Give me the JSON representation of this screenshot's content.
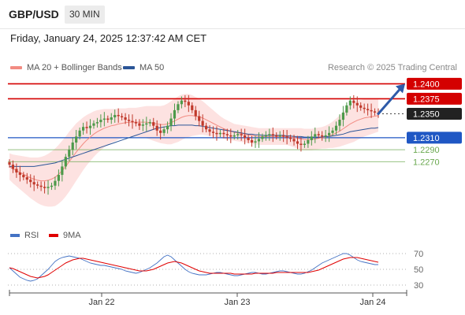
{
  "header": {
    "symbol": "GBP/USD",
    "timeframe": "30 MIN"
  },
  "datetime": "Friday, January 24, 2025 12:37:42 AM CET",
  "legend": {
    "bollinger": {
      "label": "MA 20 + Bollinger Bands",
      "color": "#f28b82"
    },
    "ma50": {
      "label": "MA 50",
      "color": "#2b5597"
    }
  },
  "credit": "Research © 2025 Trading Central",
  "rsi_legend": {
    "rsi": {
      "label": "RSI",
      "color": "#4472c4"
    },
    "ma9": {
      "label": "9MA",
      "color": "#e00000"
    }
  },
  "chart_data": {
    "type": "candlestick",
    "symbol": "GBP/USD",
    "timeframe": "30 MIN",
    "x_ticks": [
      "Jan 22",
      "Jan 23",
      "Jan 24"
    ],
    "price_ylim": [
      1.2185,
      1.2415
    ],
    "levels": [
      {
        "value": 1.24,
        "label": "1.2400",
        "kind": "resistance",
        "color": "#d40000"
      },
      {
        "value": 1.2375,
        "label": "1.2375",
        "kind": "resistance",
        "color": "#d40000"
      },
      {
        "value": 1.235,
        "label": "1.2350",
        "kind": "last",
        "color": "#222222"
      },
      {
        "value": 1.231,
        "label": "1.2310",
        "kind": "pivot",
        "color": "#1f57c4"
      },
      {
        "value": 1.229,
        "label": "1.2290",
        "kind": "support",
        "color": "#6aa84f"
      },
      {
        "value": 1.227,
        "label": "1.2270",
        "kind": "support",
        "color": "#6aa84f"
      }
    ],
    "close": [
      1.2265,
      1.2258,
      1.2252,
      1.2248,
      1.2244,
      1.224,
      1.2236,
      1.2232,
      1.223,
      1.2228,
      1.2226,
      1.2228,
      1.223,
      1.2238,
      1.2248,
      1.2262,
      1.2278,
      1.229,
      1.2302,
      1.2312,
      1.2322,
      1.2328,
      1.2326,
      1.233,
      1.2334,
      1.2336,
      1.234,
      1.2342,
      1.234,
      1.2344,
      1.2348,
      1.2346,
      1.2344,
      1.234,
      1.2338,
      1.2336,
      1.2334,
      1.233,
      1.2332,
      1.2334,
      1.2336,
      1.233,
      1.2322,
      1.2318,
      1.2324,
      1.233,
      1.2342,
      1.2356,
      1.2366,
      1.2372,
      1.237,
      1.2364,
      1.2356,
      1.2346,
      1.2338,
      1.233,
      1.2324,
      1.232,
      1.2318,
      1.2316,
      1.2318,
      1.2316,
      1.2314,
      1.2312,
      1.2314,
      1.2316,
      1.2314,
      1.231,
      1.2306,
      1.2302,
      1.2304,
      1.2308,
      1.2312,
      1.2314,
      1.2316,
      1.2314,
      1.2312,
      1.2314,
      1.2312,
      1.231,
      1.2308,
      1.2304,
      1.23,
      1.2298,
      1.23,
      1.2306,
      1.2312,
      1.2316,
      1.2314,
      1.2312,
      1.2314,
      1.2318,
      1.2322,
      1.233,
      1.234,
      1.2352,
      1.2364,
      1.2372,
      1.2368,
      1.2364,
      1.236,
      1.2358,
      1.2356,
      1.2354,
      1.2352,
      1.235
    ],
    "ma20": [
      1.2262,
      1.2258,
      1.2255,
      1.2252,
      1.2249,
      1.2246,
      1.2243,
      1.2241,
      1.2239,
      1.2238,
      1.2238,
      1.2239,
      1.2241,
      1.2244,
      1.2249,
      1.2255,
      1.2262,
      1.227,
      1.2278,
      1.2286,
      1.2293,
      1.23,
      1.2306,
      1.2311,
      1.2316,
      1.232,
      1.2323,
      1.2326,
      1.2328,
      1.233,
      1.2331,
      1.2333,
      1.2334,
      1.2335,
      1.2336,
      1.2336,
      1.2336,
      1.2336,
      1.2336,
      1.2336,
      1.2335,
      1.2334,
      1.2333,
      1.2332,
      1.2332,
      1.2333,
      1.2335,
      1.2338,
      1.2341,
      1.2344,
      1.2346,
      1.2347,
      1.2347,
      1.2346,
      1.2345,
      1.2343,
      1.234,
      1.2337,
      1.2334,
      1.2331,
      1.2328,
      1.2325,
      1.2323,
      1.2321,
      1.2319,
      1.2318,
      1.2317,
      1.2316,
      1.2315,
      1.2314,
      1.2313,
      1.2312,
      1.2312,
      1.2312,
      1.2312,
      1.2312,
      1.2312,
      1.2312,
      1.2312,
      1.2312,
      1.2311,
      1.231,
      1.2309,
      1.2308,
      1.2307,
      1.2307,
      1.2307,
      1.2308,
      1.2309,
      1.231,
      1.2311,
      1.2313,
      1.2315,
      1.2318,
      1.2321,
      1.2325,
      1.2329,
      1.2333,
      1.2336,
      1.2339,
      1.2341,
      1.2343,
      1.2344,
      1.2345,
      1.2346,
      1.2347
    ],
    "band_width": [
      0.0022,
      0.0024,
      0.0026,
      0.0028,
      0.003,
      0.0032,
      0.0034,
      0.0036,
      0.0038,
      0.004,
      0.0042,
      0.0044,
      0.0046,
      0.0048,
      0.0049,
      0.005,
      0.005,
      0.005,
      0.0049,
      0.0048,
      0.0046,
      0.0044,
      0.0042,
      0.004,
      0.0038,
      0.0036,
      0.0034,
      0.0032,
      0.003,
      0.0028,
      0.0027,
      0.0026,
      0.0025,
      0.0024,
      0.0024,
      0.0024,
      0.0024,
      0.0025,
      0.0026,
      0.0027,
      0.0028,
      0.0029,
      0.003,
      0.0031,
      0.0032,
      0.0034,
      0.0036,
      0.0037,
      0.0038,
      0.0038,
      0.0037,
      0.0036,
      0.0034,
      0.0032,
      0.003,
      0.0028,
      0.0026,
      0.0024,
      0.0022,
      0.002,
      0.0018,
      0.0017,
      0.0016,
      0.0015,
      0.0014,
      0.0014,
      0.0014,
      0.0014,
      0.0014,
      0.0014,
      0.0014,
      0.0014,
      0.0014,
      0.0014,
      0.0014,
      0.0014,
      0.0014,
      0.0014,
      0.0014,
      0.0014,
      0.0015,
      0.0016,
      0.0017,
      0.0018,
      0.0018,
      0.0018,
      0.0018,
      0.0018,
      0.0018,
      0.0018,
      0.0019,
      0.002,
      0.0022,
      0.0024,
      0.0026,
      0.0028,
      0.003,
      0.0032,
      0.0033,
      0.0033,
      0.0032,
      0.0031,
      0.003,
      0.0029,
      0.0028,
      0.0027
    ],
    "ma50": [
      1.2262,
      1.2262,
      1.2262,
      1.2262,
      1.2262,
      1.2262,
      1.2262,
      1.2262,
      1.2263,
      1.2264,
      1.2265,
      1.2266,
      1.2267,
      1.2268,
      1.227,
      1.2272,
      1.2274,
      1.2276,
      1.2278,
      1.228,
      1.2282,
      1.2284,
      1.2286,
      1.2288,
      1.229,
      1.2292,
      1.2294,
      1.2296,
      1.2298,
      1.23,
      1.2302,
      1.2304,
      1.2306,
      1.2308,
      1.231,
      1.2312,
      1.2314,
      1.2316,
      1.2318,
      1.232,
      1.2322,
      1.2324,
      1.2326,
      1.2327,
      1.2328,
      1.2329,
      1.233,
      1.233,
      1.2331,
      1.2331,
      1.2331,
      1.2331,
      1.2331,
      1.233,
      1.233,
      1.2329,
      1.2328,
      1.2327,
      1.2326,
      1.2325,
      1.2324,
      1.2323,
      1.2322,
      1.2321,
      1.232,
      1.2319,
      1.2318,
      1.2317,
      1.2316,
      1.2316,
      1.2315,
      1.2315,
      1.2314,
      1.2314,
      1.2314,
      1.2314,
      1.2314,
      1.2314,
      1.2314,
      1.2313,
      1.2313,
      1.2312,
      1.2312,
      1.2312,
      1.2311,
      1.2311,
      1.2311,
      1.2311,
      1.2311,
      1.2311,
      1.2312,
      1.2312,
      1.2313,
      1.2314,
      1.2315,
      1.2316,
      1.2318,
      1.232,
      1.2321,
      1.2322,
      1.2323,
      1.2324,
      1.2325,
      1.2326,
      1.2326,
      1.2327
    ],
    "forecast_arrow": {
      "from": 1.235,
      "to": 1.24
    },
    "rsi_ylim": [
      20,
      80
    ],
    "rsi_ticks": [
      70,
      50,
      30
    ],
    "rsi": [
      52,
      48,
      44,
      40,
      38,
      36,
      35,
      36,
      38,
      42,
      46,
      50,
      55,
      60,
      63,
      65,
      66,
      67,
      66,
      65,
      64,
      62,
      60,
      58,
      57,
      56,
      55,
      55,
      54,
      53,
      52,
      51,
      50,
      48,
      47,
      46,
      45,
      46,
      48,
      50,
      52,
      55,
      58,
      62,
      66,
      68,
      66,
      62,
      58,
      54,
      50,
      47,
      45,
      44,
      43,
      43,
      43,
      44,
      45,
      46,
      46,
      45,
      44,
      43,
      42,
      42,
      43,
      44,
      45,
      46,
      46,
      45,
      44,
      44,
      45,
      46,
      47,
      48,
      48,
      47,
      46,
      45,
      44,
      44,
      45,
      47,
      49,
      52,
      55,
      58,
      60,
      62,
      64,
      66,
      68,
      70,
      70,
      68,
      65,
      62,
      60,
      59,
      58,
      57,
      56,
      56
    ],
    "rsi_ma9": [
      52,
      51,
      49,
      47,
      45,
      43,
      41,
      40,
      39,
      40,
      41,
      43,
      46,
      49,
      52,
      55,
      58,
      60,
      62,
      63,
      64,
      64,
      63,
      62,
      61,
      60,
      59,
      58,
      57,
      56,
      55,
      54,
      53,
      52,
      51,
      50,
      49,
      48,
      48,
      48,
      49,
      50,
      52,
      54,
      56,
      58,
      59,
      60,
      59,
      58,
      56,
      54,
      52,
      50,
      48,
      47,
      46,
      45,
      45,
      45,
      45,
      45,
      45,
      45,
      44,
      44,
      44,
      44,
      44,
      44,
      45,
      45,
      45,
      45,
      45,
      45,
      46,
      46,
      46,
      46,
      46,
      46,
      46,
      46,
      46,
      46,
      47,
      48,
      49,
      51,
      53,
      55,
      57,
      59,
      61,
      63,
      64,
      65,
      65,
      65,
      64,
      63,
      62,
      61,
      60,
      59
    ]
  }
}
